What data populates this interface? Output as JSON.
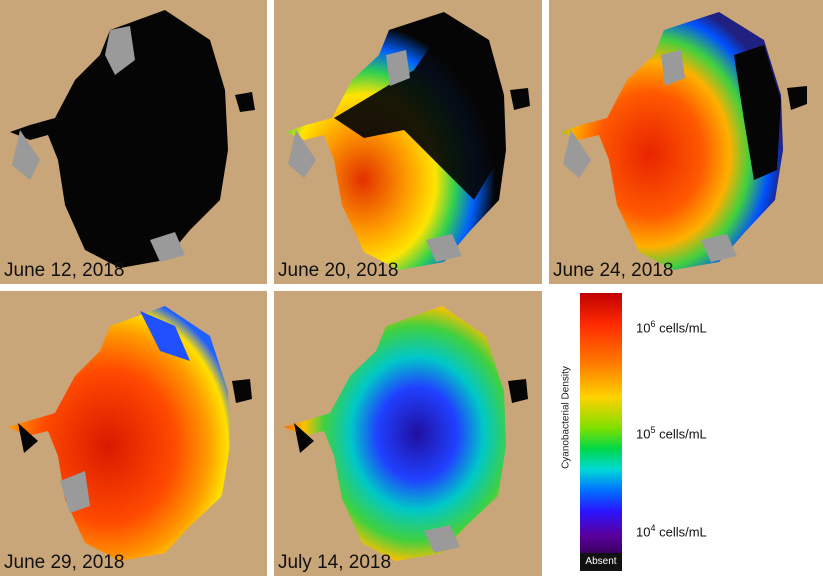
{
  "panels": [
    {
      "caption": "June 12, 2018"
    },
    {
      "caption": "June 20, 2018"
    },
    {
      "caption": "June 24, 2018"
    },
    {
      "caption": "June 29, 2018"
    },
    {
      "caption": "July 14, 2018"
    }
  ],
  "legend": {
    "title": "Cyanobacterial Density",
    "ticks": [
      {
        "base": "10",
        "exp": "6",
        "unit": " cells/mL"
      },
      {
        "base": "10",
        "exp": "5",
        "unit": " cells/mL"
      },
      {
        "base": "10",
        "exp": "4",
        "unit": " cells/mL"
      }
    ],
    "absent_label": "Absent"
  },
  "colors": {
    "land": "#c9a57a",
    "cloud_gray": "#9a9a9a",
    "absent_black": "#050505"
  }
}
